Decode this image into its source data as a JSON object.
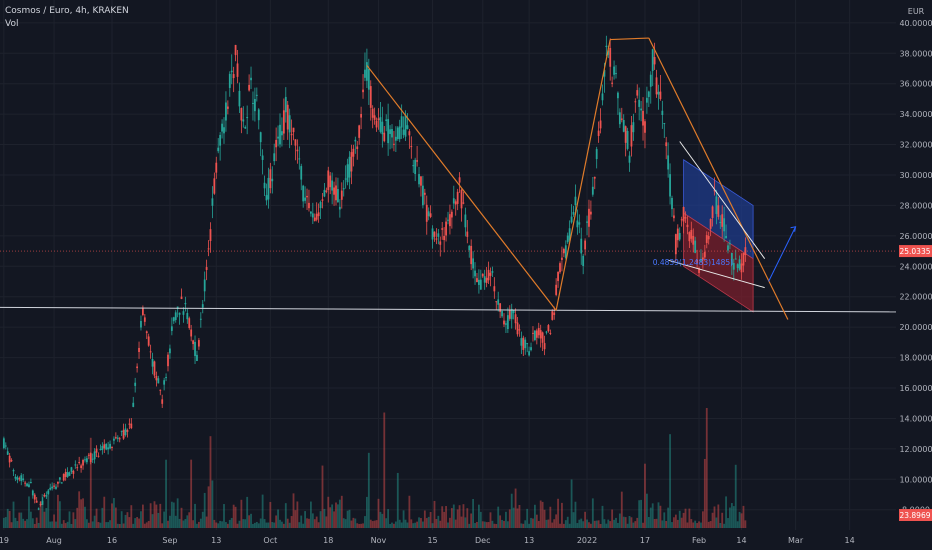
{
  "legend": {
    "title": "Cosmos / Euro, 4h, KRAKEN",
    "indicator": "Vol"
  },
  "colors": {
    "background": "#131722",
    "up": "#26a69a",
    "down": "#ef5350",
    "trendline": "#e07b2a",
    "support": "#d1d4dc",
    "channel_upper_fill": "#1f3b8a",
    "channel_lower_fill": "#7a1f2c",
    "arrow": "#2962ff",
    "price_tag": "#ef5350",
    "text": "#b2b5be"
  },
  "chart_data": {
    "type": "candlestick",
    "currency_label": "EUR",
    "ylim": [
      6.8,
      41.5
    ],
    "y_ticks": [
      {
        "value": 40,
        "label": "40.0000"
      },
      {
        "value": 38,
        "label": "38.0000"
      },
      {
        "value": 36,
        "label": "36.0000"
      },
      {
        "value": 34,
        "label": "34.0000"
      },
      {
        "value": 32,
        "label": "32.0000"
      },
      {
        "value": 30,
        "label": "30.0000"
      },
      {
        "value": 28,
        "label": "28.0000"
      },
      {
        "value": 26,
        "label": "26.0000"
      },
      {
        "value": 24,
        "label": "24.0000"
      },
      {
        "value": 22,
        "label": "22.0000"
      },
      {
        "value": 20,
        "label": "20.0000"
      },
      {
        "value": 18,
        "label": "18.0000"
      },
      {
        "value": 16,
        "label": "16.0000"
      },
      {
        "value": 14,
        "label": "14.0000"
      },
      {
        "value": 12,
        "label": "12.0000"
      },
      {
        "value": 10,
        "label": "10.0000"
      },
      {
        "value": 8,
        "label": "8.0000"
      }
    ],
    "x_ticks": [
      {
        "t": 0,
        "label": "19"
      },
      {
        "t": 13,
        "label": "Aug"
      },
      {
        "t": 28,
        "label": "16"
      },
      {
        "t": 43,
        "label": "Sep"
      },
      {
        "t": 55,
        "label": "13"
      },
      {
        "t": 69,
        "label": "Oct"
      },
      {
        "t": 84,
        "label": "18"
      },
      {
        "t": 97,
        "label": "Nov"
      },
      {
        "t": 111,
        "label": "15"
      },
      {
        "t": 124,
        "label": "Dec"
      },
      {
        "t": 136,
        "label": "13"
      },
      {
        "t": 151,
        "label": "2022"
      },
      {
        "t": 166,
        "label": "17"
      },
      {
        "t": 180,
        "label": "Feb"
      },
      {
        "t": 191,
        "label": "14"
      },
      {
        "t": 205,
        "label": "Mar"
      },
      {
        "t": 219,
        "label": "14"
      }
    ],
    "x_range": [
      -1,
      231
    ],
    "price_path": [
      [
        0,
        12.4
      ],
      [
        3,
        10.3
      ],
      [
        7,
        9.6
      ],
      [
        9,
        8.0
      ],
      [
        11,
        9.0
      ],
      [
        15,
        10.0
      ],
      [
        20,
        11.0
      ],
      [
        25,
        11.9
      ],
      [
        30,
        12.8
      ],
      [
        33,
        13.5
      ],
      [
        36,
        21.2
      ],
      [
        38,
        18.3
      ],
      [
        41,
        15.2
      ],
      [
        44,
        20.5
      ],
      [
        46,
        21.6
      ],
      [
        48,
        20.4
      ],
      [
        50,
        18.0
      ],
      [
        53,
        24.8
      ],
      [
        55,
        31.0
      ],
      [
        58,
        35.0
      ],
      [
        60,
        37.8
      ],
      [
        62,
        33.2
      ],
      [
        64,
        36.2
      ],
      [
        66,
        34.0
      ],
      [
        68,
        28.5
      ],
      [
        70,
        31.0
      ],
      [
        73,
        34.2
      ],
      [
        76,
        31.5
      ],
      [
        78,
        28.2
      ],
      [
        81,
        27.0
      ],
      [
        84,
        29.5
      ],
      [
        87,
        28.5
      ],
      [
        89,
        30.2
      ],
      [
        91,
        31.5
      ],
      [
        94,
        36.8
      ],
      [
        96,
        34.0
      ],
      [
        98,
        33.0
      ],
      [
        101,
        32.6
      ],
      [
        104,
        33.3
      ],
      [
        106,
        31.0
      ],
      [
        108,
        29.4
      ],
      [
        110,
        27.0
      ],
      [
        113,
        25.5
      ],
      [
        116,
        27.5
      ],
      [
        118,
        29.2
      ],
      [
        120,
        26.0
      ],
      [
        123,
        22.5
      ],
      [
        126,
        23.8
      ],
      [
        128,
        21.3
      ],
      [
        130,
        20.2
      ],
      [
        132,
        21.0
      ],
      [
        134,
        19.0
      ],
      [
        136,
        18.5
      ],
      [
        138,
        19.8
      ],
      [
        140,
        19.0
      ],
      [
        142,
        20.5
      ],
      [
        144,
        24.0
      ],
      [
        146,
        25.5
      ],
      [
        148,
        28.0
      ],
      [
        150,
        24.5
      ],
      [
        152,
        28.0
      ],
      [
        154,
        32.5
      ],
      [
        156,
        38.2
      ],
      [
        158,
        36.5
      ],
      [
        160,
        33.5
      ],
      [
        162,
        31.5
      ],
      [
        164,
        35.0
      ],
      [
        166,
        33.5
      ],
      [
        168,
        37.5
      ],
      [
        170,
        34.8
      ],
      [
        172,
        30.5
      ],
      [
        174,
        25.5
      ],
      [
        176,
        27.5
      ],
      [
        178,
        26.0
      ],
      [
        180,
        24.0
      ],
      [
        182,
        25.5
      ],
      [
        184,
        28.5
      ],
      [
        186,
        27.0
      ],
      [
        188,
        25.0
      ],
      [
        190,
        23.5
      ],
      [
        192,
        25.0
      ]
    ],
    "lines": {
      "trend_1": [
        [
          94,
          37.2
        ],
        [
          143,
          21.1
        ]
      ],
      "trend_2": [
        [
          143,
          21.1
        ],
        [
          157,
          38.9
        ]
      ],
      "top_flat": [
        [
          157,
          38.9
        ],
        [
          167,
          39.0
        ]
      ],
      "trend_3": [
        [
          167,
          39.0
        ],
        [
          203,
          20.5
        ]
      ],
      "support": [
        [
          -1,
          21.3
        ],
        [
          231,
          21.0
        ]
      ],
      "wedge_upper": [
        [
          175,
          32.2
        ],
        [
          197,
          24.5
        ]
      ],
      "wedge_lower": [
        [
          172,
          24.4
        ],
        [
          197,
          22.6
        ]
      ],
      "forecast_arrow": [
        [
          198,
          23.0
        ],
        [
          205,
          26.6
        ]
      ]
    },
    "channel": {
      "upper_band": [
        [
          176,
          31.0
        ],
        [
          194,
          28.0
        ],
        [
          194,
          24.5
        ],
        [
          176,
          27.5
        ]
      ],
      "lower_band": [
        [
          176,
          27.5
        ],
        [
          194,
          24.5
        ],
        [
          194,
          21.0
        ],
        [
          176,
          24.0
        ]
      ],
      "label": "0.4839(1.2483)1485)",
      "label_pos": [
        168,
        24.1
      ]
    },
    "last_price": {
      "value": 25.0,
      "label": "25.0335"
    },
    "volume_label": "23.8969",
    "volume_max": 100
  }
}
